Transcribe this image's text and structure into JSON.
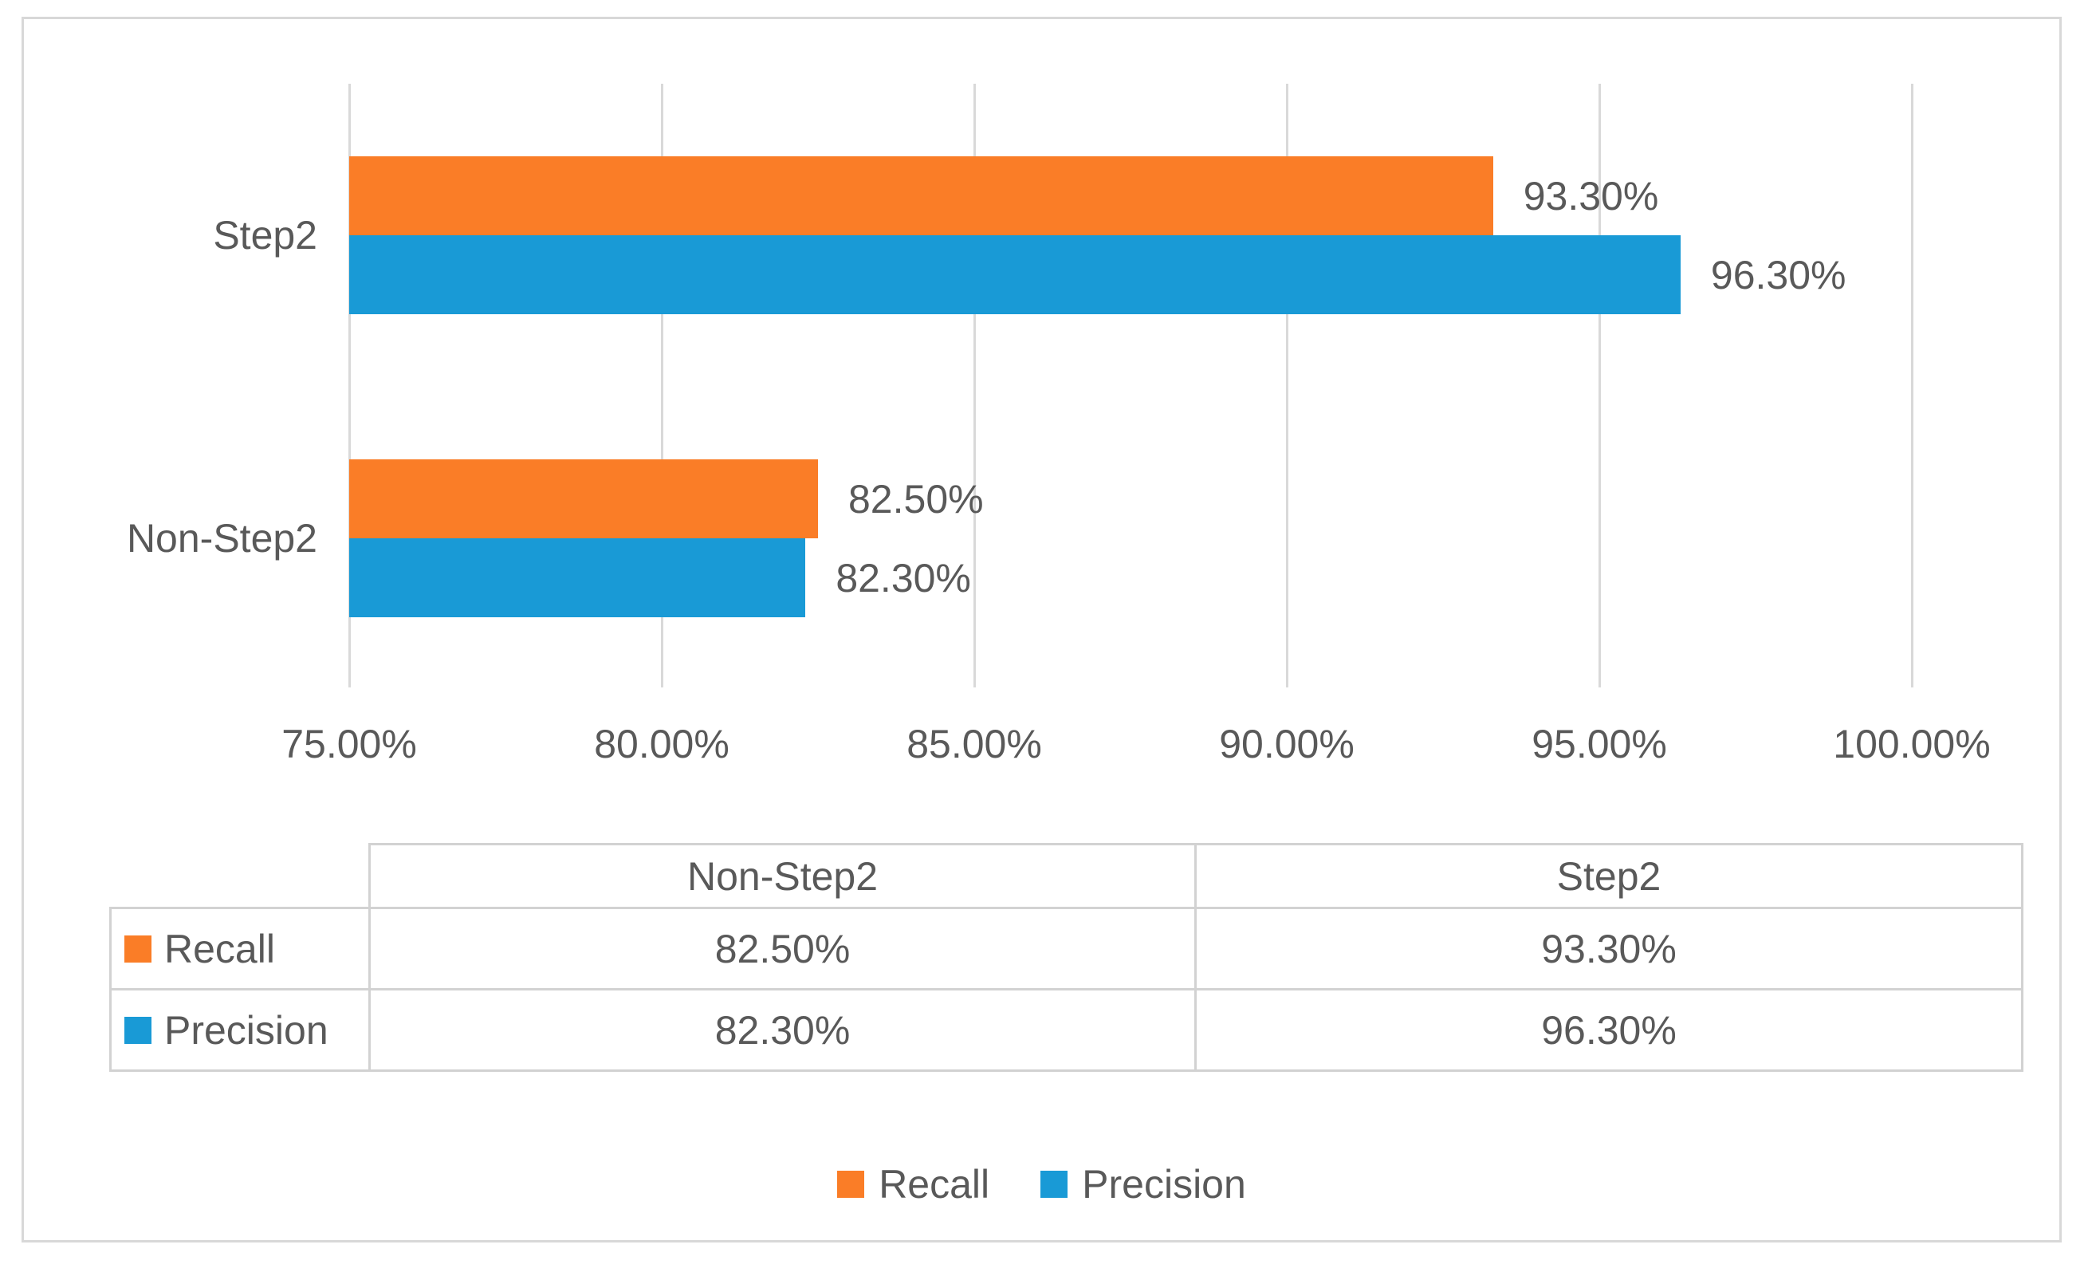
{
  "chart_data": {
    "type": "bar",
    "orientation": "horizontal",
    "title": "",
    "xlabel": "",
    "ylabel": "",
    "categories": [
      "Non-Step2",
      "Step2"
    ],
    "category_display_order_top_to_bottom": [
      "Step2",
      "Non-Step2"
    ],
    "series": [
      {
        "name": "Recall",
        "color": "#FA7D27",
        "values": [
          82.5,
          93.3
        ],
        "value_labels": [
          "82.50%",
          "93.30%"
        ]
      },
      {
        "name": "Precision",
        "color": "#199AD6",
        "values": [
          82.3,
          96.3
        ],
        "value_labels": [
          "82.30%",
          "96.30%"
        ]
      }
    ],
    "x_axis": {
      "min": 75,
      "max": 100,
      "tick_step": 5,
      "tick_labels": [
        "75.00%",
        "80.00%",
        "85.00%",
        "90.00%",
        "95.00%",
        "100.00%"
      ]
    },
    "grid": true,
    "legend_position": "bottom",
    "data_table": {
      "column_headers": [
        "Non-Step2",
        "Step2"
      ],
      "rows": [
        {
          "name": "Recall",
          "values": [
            "82.50%",
            "93.30%"
          ]
        },
        {
          "name": "Precision",
          "values": [
            "82.30%",
            "96.30%"
          ]
        }
      ]
    }
  },
  "colors": {
    "recall": "#FA7D27",
    "precision": "#199AD6",
    "text": "#595959",
    "gridline": "#D9D9D9",
    "table_border": "#D2D2D2",
    "frame_border": "#D8D8D8"
  }
}
